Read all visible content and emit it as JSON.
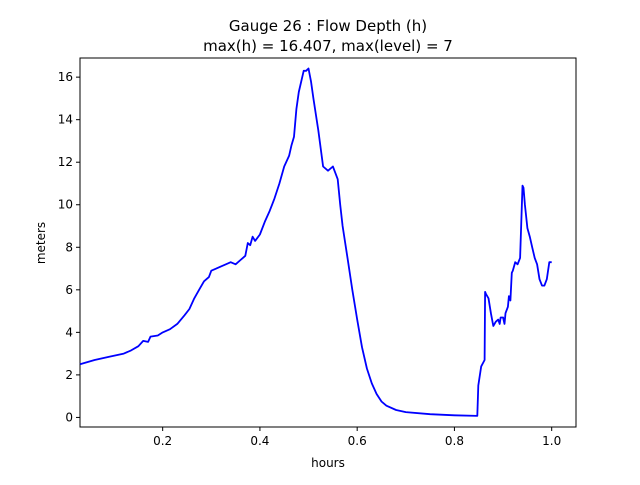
{
  "chart_data": {
    "type": "line",
    "title": "Gauge 26 : Flow Depth (h)",
    "subtitle": "max(h) =  16.407,    max(level) = 7",
    "xlabel": "hours",
    "ylabel": "meters",
    "xlim": [
      0.03,
      1.05
    ],
    "ylim": [
      -0.45,
      16.9
    ],
    "xticks": [
      0.2,
      0.4,
      0.6,
      0.8,
      1.0
    ],
    "xtick_labels": [
      "0.2",
      "0.4",
      "0.6",
      "0.8",
      "1.0"
    ],
    "yticks": [
      0,
      2,
      4,
      6,
      8,
      10,
      12,
      14,
      16
    ],
    "ytick_labels": [
      "0",
      "2",
      "4",
      "6",
      "8",
      "10",
      "12",
      "14",
      "16"
    ],
    "grid": false,
    "legend": "none",
    "series": [
      {
        "color": "#0000ff",
        "x": [
          0.03,
          0.06,
          0.09,
          0.12,
          0.135,
          0.15,
          0.16,
          0.17,
          0.175,
          0.19,
          0.2,
          0.215,
          0.23,
          0.245,
          0.255,
          0.265,
          0.275,
          0.285,
          0.295,
          0.3,
          0.31,
          0.32,
          0.33,
          0.34,
          0.35,
          0.36,
          0.365,
          0.37,
          0.375,
          0.38,
          0.385,
          0.39,
          0.4,
          0.41,
          0.42,
          0.425,
          0.43,
          0.44,
          0.45,
          0.46,
          0.465,
          0.47,
          0.475,
          0.48,
          0.49,
          0.495,
          0.5,
          0.505,
          0.51,
          0.52,
          0.53,
          0.54,
          0.55,
          0.555,
          0.56,
          0.565,
          0.57,
          0.58,
          0.59,
          0.6,
          0.61,
          0.62,
          0.63,
          0.64,
          0.65,
          0.66,
          0.68,
          0.7,
          0.75,
          0.8,
          0.847,
          0.849,
          0.855,
          0.862,
          0.863,
          0.865,
          0.87,
          0.875,
          0.88,
          0.885,
          0.89,
          0.893,
          0.895,
          0.9,
          0.903,
          0.905,
          0.91,
          0.912,
          0.915,
          0.918,
          0.92,
          0.925,
          0.93,
          0.935,
          0.94,
          0.942,
          0.945,
          0.95,
          0.955,
          0.96,
          0.965,
          0.97,
          0.975,
          0.98,
          0.985,
          0.99,
          0.995,
          1.0
        ],
        "y": [
          2.5,
          2.7,
          2.85,
          3.0,
          3.15,
          3.35,
          3.6,
          3.55,
          3.8,
          3.85,
          4.0,
          4.15,
          4.4,
          4.8,
          5.1,
          5.6,
          6.0,
          6.4,
          6.6,
          6.9,
          7.0,
          7.1,
          7.2,
          7.3,
          7.2,
          7.4,
          7.5,
          7.6,
          8.2,
          8.1,
          8.5,
          8.3,
          8.6,
          9.2,
          9.7,
          10.0,
          10.3,
          11.0,
          11.8,
          12.3,
          12.8,
          13.2,
          14.5,
          15.3,
          16.3,
          16.3,
          16.407,
          15.8,
          15.0,
          13.5,
          11.8,
          11.6,
          11.8,
          11.5,
          11.2,
          10.0,
          9.0,
          7.5,
          6.0,
          4.6,
          3.3,
          2.3,
          1.6,
          1.1,
          0.75,
          0.55,
          0.35,
          0.25,
          0.15,
          0.1,
          0.07,
          1.5,
          2.4,
          2.7,
          5.9,
          5.8,
          5.6,
          4.9,
          4.3,
          4.5,
          4.6,
          4.4,
          4.7,
          4.7,
          4.4,
          4.9,
          5.2,
          5.7,
          5.5,
          6.8,
          6.9,
          7.3,
          7.2,
          7.5,
          10.9,
          10.8,
          10.0,
          8.9,
          8.5,
          8.0,
          7.5,
          7.2,
          6.5,
          6.2,
          6.2,
          6.5,
          7.3,
          7.3
        ]
      }
    ]
  }
}
